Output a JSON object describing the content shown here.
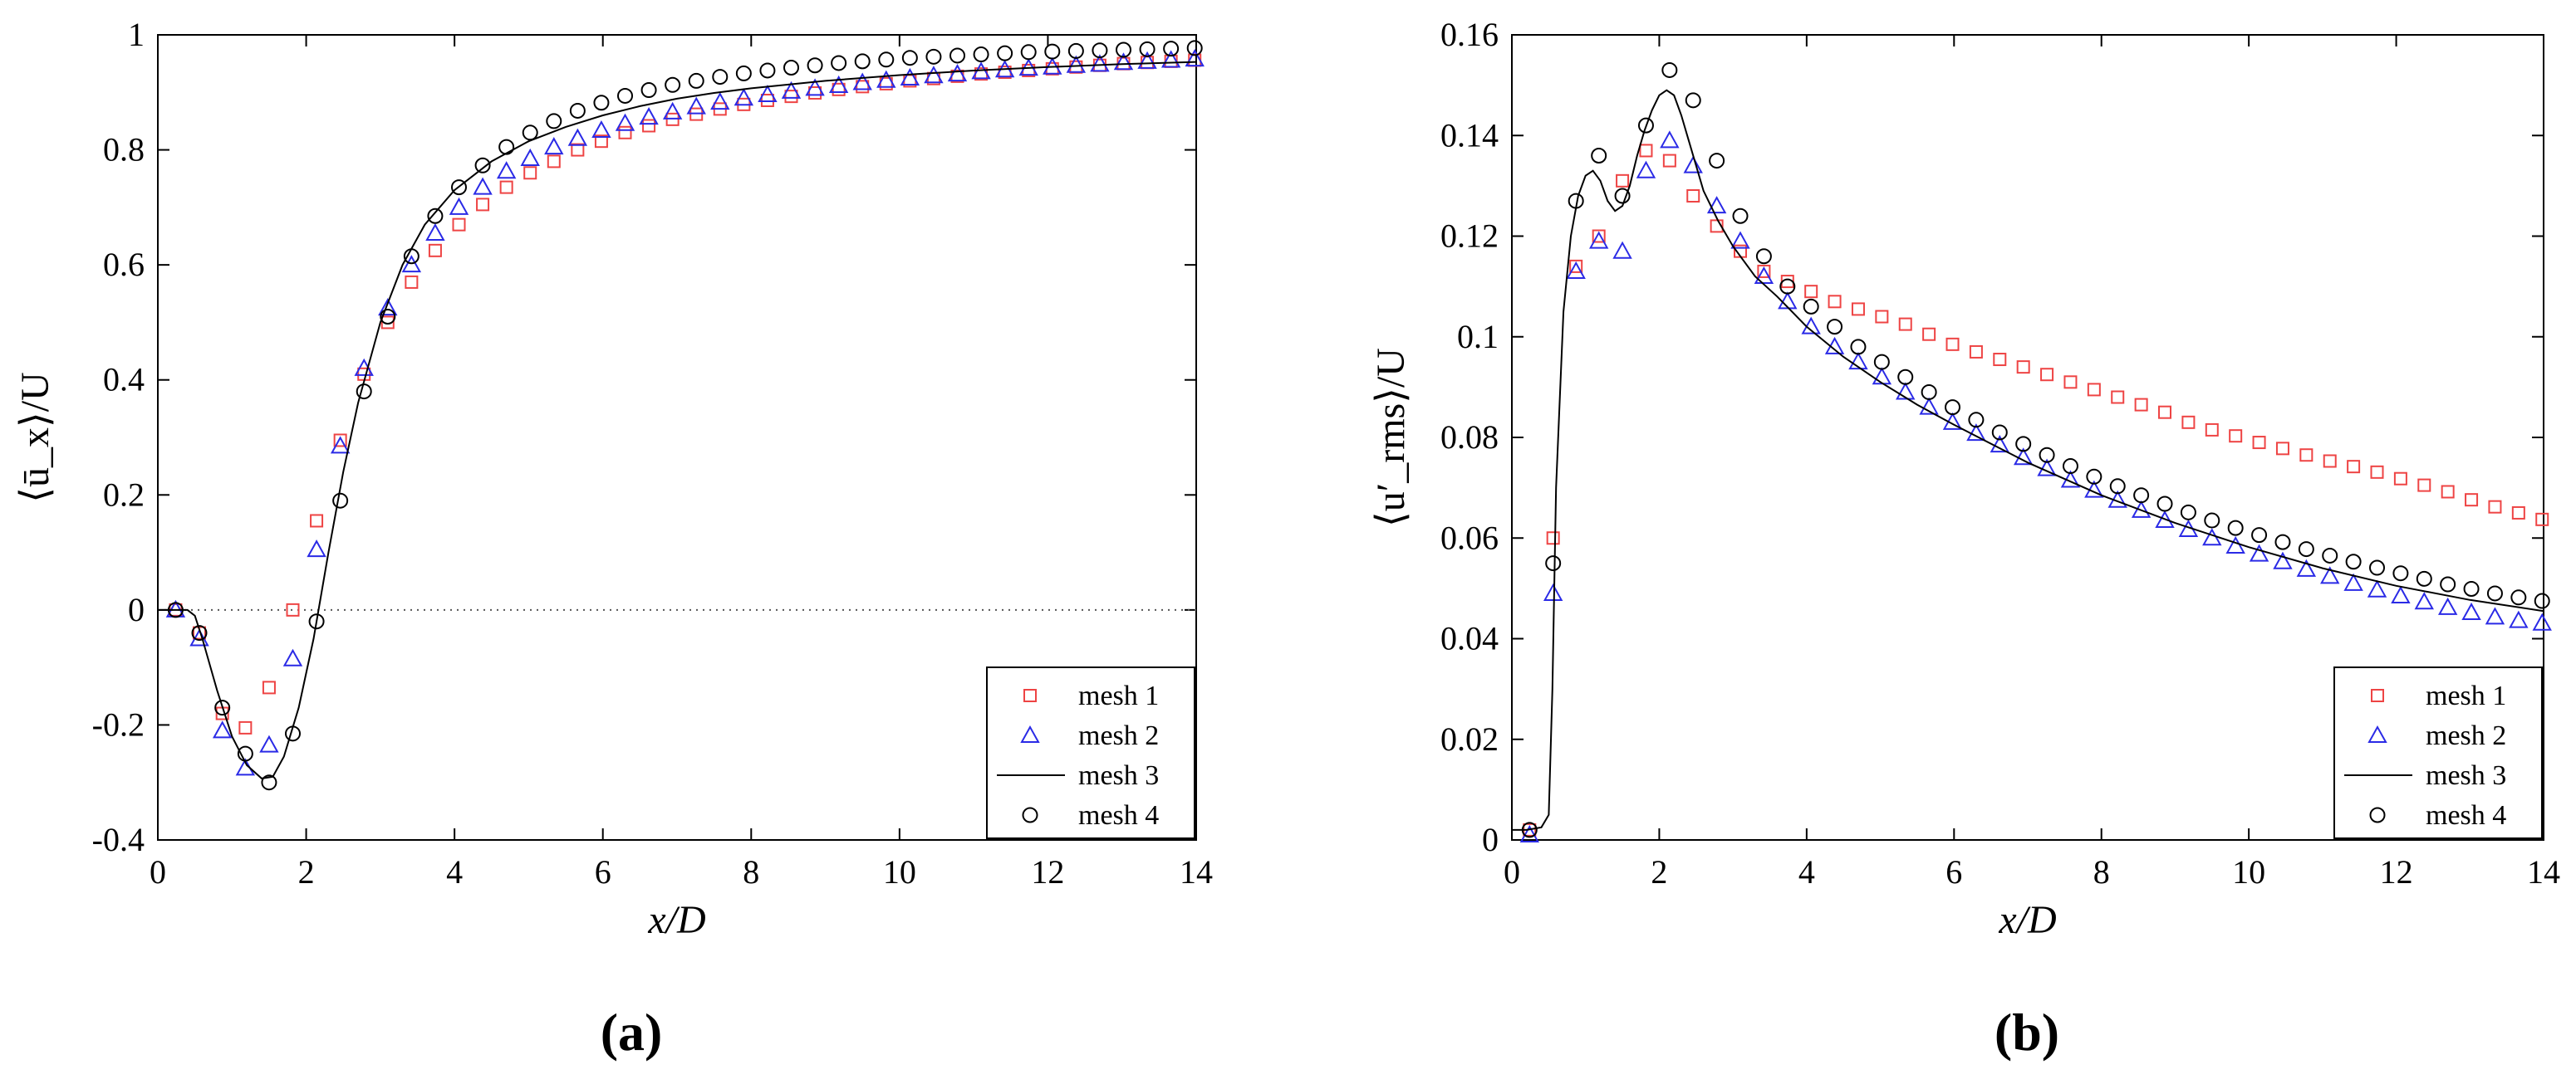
{
  "figure": {
    "legend": [
      "mesh 1",
      "mesh 2",
      "mesh 3",
      "mesh 4"
    ],
    "colors": {
      "mesh1": "#ee4444",
      "mesh2": "#2a2ae6",
      "mesh3": "#000000",
      "mesh4": "#000000"
    }
  },
  "chart_data": [
    {
      "type": "line",
      "panel_label": "(a)",
      "xlabel": "x/D",
      "ylabel": "⟨ū_x⟩/U",
      "xlim": [
        0,
        14
      ],
      "ylim": [
        -0.4,
        1
      ],
      "xticks": [
        "0",
        "2",
        "4",
        "6",
        "8",
        "10",
        "12",
        "14"
      ],
      "yticks": [
        "-0.4",
        "-0.2",
        "0",
        "0.2",
        "0.4",
        "0.6",
        "0.8",
        "1"
      ],
      "reference_line": {
        "y": 0,
        "style": "dotted"
      },
      "legend_position": "lower-right",
      "series": [
        {
          "name": "mesh 1",
          "marker": "square",
          "x": [
            0.24,
            0.56,
            0.87,
            1.18,
            1.5,
            1.82,
            2.14,
            2.46,
            2.78,
            3.1,
            3.42,
            3.74,
            4.06,
            4.38,
            4.7,
            5.02,
            5.34,
            5.66,
            5.98,
            6.3,
            6.62,
            6.94,
            7.26,
            7.58,
            7.9,
            8.22,
            8.54,
            8.86,
            9.18,
            9.5,
            9.82,
            10.14,
            10.46,
            10.78,
            11.1,
            11.42,
            11.74,
            12.06,
            12.38,
            12.7,
            13.02,
            13.34,
            13.66,
            13.98
          ],
          "y": [
            0.0,
            -0.04,
            -0.18,
            -0.205,
            -0.135,
            0.0,
            0.155,
            0.295,
            0.41,
            0.5,
            0.57,
            0.625,
            0.67,
            0.705,
            0.735,
            0.76,
            0.78,
            0.8,
            0.815,
            0.83,
            0.842,
            0.853,
            0.862,
            0.871,
            0.879,
            0.886,
            0.893,
            0.899,
            0.905,
            0.91,
            0.915,
            0.92,
            0.924,
            0.928,
            0.932,
            0.935,
            0.938,
            0.941,
            0.944,
            0.947,
            0.95,
            0.952,
            0.954,
            0.956
          ]
        },
        {
          "name": "mesh 2",
          "marker": "triangle",
          "x": [
            0.24,
            0.56,
            0.87,
            1.18,
            1.5,
            1.82,
            2.14,
            2.46,
            2.78,
            3.1,
            3.42,
            3.74,
            4.06,
            4.38,
            4.7,
            5.02,
            5.34,
            5.66,
            5.98,
            6.3,
            6.62,
            6.94,
            7.26,
            7.58,
            7.9,
            8.22,
            8.54,
            8.86,
            9.18,
            9.5,
            9.82,
            10.14,
            10.46,
            10.78,
            11.1,
            11.42,
            11.74,
            12.06,
            12.38,
            12.7,
            13.02,
            13.34,
            13.66,
            13.98
          ],
          "y": [
            0.0,
            -0.05,
            -0.21,
            -0.275,
            -0.235,
            -0.085,
            0.105,
            0.285,
            0.42,
            0.525,
            0.6,
            0.655,
            0.7,
            0.735,
            0.763,
            0.785,
            0.805,
            0.82,
            0.834,
            0.846,
            0.857,
            0.866,
            0.875,
            0.883,
            0.89,
            0.896,
            0.902,
            0.907,
            0.912,
            0.917,
            0.921,
            0.925,
            0.929,
            0.932,
            0.936,
            0.939,
            0.942,
            0.944,
            0.947,
            0.949,
            0.952,
            0.954,
            0.956,
            0.958
          ]
        },
        {
          "name": "mesh 3",
          "marker": "line",
          "x": [
            0,
            0.2,
            0.4,
            0.5,
            0.6,
            0.8,
            1.0,
            1.2,
            1.4,
            1.55,
            1.7,
            1.9,
            2.1,
            2.3,
            2.5,
            2.7,
            3.0,
            3.3,
            3.6,
            4.0,
            4.5,
            5.0,
            5.5,
            6.0,
            6.5,
            7.0,
            7.5,
            8.0,
            9.0,
            10.0,
            11.0,
            12.0,
            13.0,
            14.0
          ],
          "y": [
            0.0,
            0.0,
            0.0,
            -0.01,
            -0.05,
            -0.14,
            -0.22,
            -0.27,
            -0.293,
            -0.29,
            -0.255,
            -0.17,
            -0.05,
            0.1,
            0.24,
            0.36,
            0.5,
            0.6,
            0.67,
            0.73,
            0.78,
            0.815,
            0.84,
            0.86,
            0.876,
            0.889,
            0.899,
            0.907,
            0.92,
            0.93,
            0.938,
            0.944,
            0.949,
            0.953
          ]
        },
        {
          "name": "mesh 4",
          "marker": "circle",
          "x": [
            0.24,
            0.56,
            0.87,
            1.18,
            1.5,
            1.82,
            2.14,
            2.46,
            2.78,
            3.1,
            3.42,
            3.74,
            4.06,
            4.38,
            4.7,
            5.02,
            5.34,
            5.66,
            5.98,
            6.3,
            6.62,
            6.94,
            7.26,
            7.58,
            7.9,
            8.22,
            8.54,
            8.86,
            9.18,
            9.5,
            9.82,
            10.14,
            10.46,
            10.78,
            11.1,
            11.42,
            11.74,
            12.06,
            12.38,
            12.7,
            13.02,
            13.34,
            13.66,
            13.98
          ],
          "y": [
            0.0,
            -0.04,
            -0.17,
            -0.25,
            -0.3,
            -0.215,
            -0.02,
            0.19,
            0.38,
            0.51,
            0.615,
            0.685,
            0.735,
            0.773,
            0.805,
            0.83,
            0.85,
            0.868,
            0.882,
            0.894,
            0.904,
            0.913,
            0.92,
            0.927,
            0.933,
            0.938,
            0.943,
            0.947,
            0.951,
            0.954,
            0.957,
            0.96,
            0.962,
            0.964,
            0.966,
            0.968,
            0.97,
            0.971,
            0.972,
            0.973,
            0.974,
            0.975,
            0.976,
            0.977
          ]
        }
      ]
    },
    {
      "type": "line",
      "panel_label": "(b)",
      "xlabel": "x/D",
      "ylabel": "⟨u′_rms⟩/U",
      "xlim": [
        0,
        14
      ],
      "ylim": [
        0,
        0.16
      ],
      "xticks": [
        "0",
        "2",
        "4",
        "6",
        "8",
        "10",
        "12",
        "14"
      ],
      "yticks": [
        "0",
        "0.02",
        "0.04",
        "0.06",
        "0.08",
        "0.1",
        "0.12",
        "0.14",
        "0.16"
      ],
      "legend_position": "lower-right",
      "series": [
        {
          "name": "mesh 1",
          "marker": "square",
          "x": [
            0.24,
            0.56,
            0.87,
            1.18,
            1.5,
            1.82,
            2.14,
            2.46,
            2.78,
            3.1,
            3.42,
            3.74,
            4.06,
            4.38,
            4.7,
            5.02,
            5.34,
            5.66,
            5.98,
            6.3,
            6.62,
            6.94,
            7.26,
            7.58,
            7.9,
            8.22,
            8.54,
            8.86,
            9.18,
            9.5,
            9.82,
            10.14,
            10.46,
            10.78,
            11.1,
            11.42,
            11.74,
            12.06,
            12.38,
            12.7,
            13.02,
            13.34,
            13.66,
            13.98
          ],
          "y": [
            0.002,
            0.06,
            0.114,
            0.12,
            0.131,
            0.137,
            0.135,
            0.128,
            0.122,
            0.117,
            0.113,
            0.111,
            0.109,
            0.107,
            0.1055,
            0.104,
            0.1025,
            0.1005,
            0.0985,
            0.097,
            0.0955,
            0.094,
            0.0925,
            0.091,
            0.0895,
            0.088,
            0.0865,
            0.085,
            0.083,
            0.0815,
            0.0803,
            0.079,
            0.0778,
            0.0765,
            0.0753,
            0.0742,
            0.0731,
            0.0718,
            0.0705,
            0.0692,
            0.0676,
            0.0662,
            0.065,
            0.0637
          ]
        },
        {
          "name": "mesh 2",
          "marker": "triangle",
          "x": [
            0.24,
            0.56,
            0.87,
            1.18,
            1.5,
            1.82,
            2.14,
            2.46,
            2.78,
            3.1,
            3.42,
            3.74,
            4.06,
            4.38,
            4.7,
            5.02,
            5.34,
            5.66,
            5.98,
            6.3,
            6.62,
            6.94,
            7.26,
            7.58,
            7.9,
            8.22,
            8.54,
            8.86,
            9.18,
            9.5,
            9.82,
            10.14,
            10.46,
            10.78,
            11.1,
            11.42,
            11.74,
            12.06,
            12.38,
            12.7,
            13.02,
            13.34,
            13.66,
            13.98
          ],
          "y": [
            0.001,
            0.049,
            0.113,
            0.119,
            0.117,
            0.133,
            0.139,
            0.134,
            0.126,
            0.119,
            0.112,
            0.107,
            0.102,
            0.098,
            0.095,
            0.092,
            0.089,
            0.086,
            0.083,
            0.0808,
            0.0785,
            0.076,
            0.0738,
            0.0715,
            0.0695,
            0.0675,
            0.0655,
            0.0635,
            0.0617,
            0.06,
            0.0584,
            0.0568,
            0.0553,
            0.0538,
            0.0524,
            0.051,
            0.0497,
            0.0485,
            0.0473,
            0.0462,
            0.0452,
            0.0443,
            0.0436,
            0.0431
          ]
        },
        {
          "name": "mesh 3",
          "marker": "line",
          "x": [
            0,
            0.2,
            0.4,
            0.5,
            0.55,
            0.6,
            0.7,
            0.8,
            0.9,
            1.0,
            1.1,
            1.2,
            1.3,
            1.4,
            1.5,
            1.6,
            1.7,
            1.8,
            1.9,
            2.0,
            2.1,
            2.2,
            2.3,
            2.4,
            2.5,
            2.6,
            2.8,
            3.0,
            3.3,
            3.6,
            4.0,
            4.5,
            5.0,
            5.5,
            6.0,
            7.0,
            8.0,
            9.0,
            10.0,
            11.0,
            12.0,
            13.0,
            14.0
          ],
          "y": [
            0.002,
            0.002,
            0.0025,
            0.005,
            0.03,
            0.07,
            0.105,
            0.12,
            0.128,
            0.132,
            0.133,
            0.131,
            0.127,
            0.125,
            0.126,
            0.13,
            0.136,
            0.141,
            0.145,
            0.148,
            0.149,
            0.148,
            0.144,
            0.139,
            0.134,
            0.129,
            0.123,
            0.118,
            0.112,
            0.108,
            0.102,
            0.096,
            0.091,
            0.0865,
            0.0825,
            0.075,
            0.0685,
            0.063,
            0.0582,
            0.054,
            0.0505,
            0.0477,
            0.0455
          ]
        },
        {
          "name": "mesh 4",
          "marker": "circle",
          "x": [
            0.24,
            0.56,
            0.87,
            1.18,
            1.5,
            1.82,
            2.14,
            2.46,
            2.78,
            3.1,
            3.42,
            3.74,
            4.06,
            4.38,
            4.7,
            5.02,
            5.34,
            5.66,
            5.98,
            6.3,
            6.62,
            6.94,
            7.26,
            7.58,
            7.9,
            8.22,
            8.54,
            8.86,
            9.18,
            9.5,
            9.82,
            10.14,
            10.46,
            10.78,
            11.1,
            11.42,
            11.74,
            12.06,
            12.38,
            12.7,
            13.02,
            13.34,
            13.66,
            13.98
          ],
          "y": [
            0.002,
            0.055,
            0.127,
            0.136,
            0.128,
            0.142,
            0.153,
            0.147,
            0.135,
            0.124,
            0.116,
            0.11,
            0.106,
            0.102,
            0.098,
            0.095,
            0.092,
            0.089,
            0.086,
            0.0835,
            0.081,
            0.0787,
            0.0765,
            0.0743,
            0.0722,
            0.0703,
            0.0685,
            0.0668,
            0.0651,
            0.0635,
            0.062,
            0.0606,
            0.0592,
            0.0578,
            0.0565,
            0.0553,
            0.0541,
            0.053,
            0.0519,
            0.0508,
            0.0499,
            0.049,
            0.0482,
            0.0475
          ]
        }
      ]
    }
  ]
}
